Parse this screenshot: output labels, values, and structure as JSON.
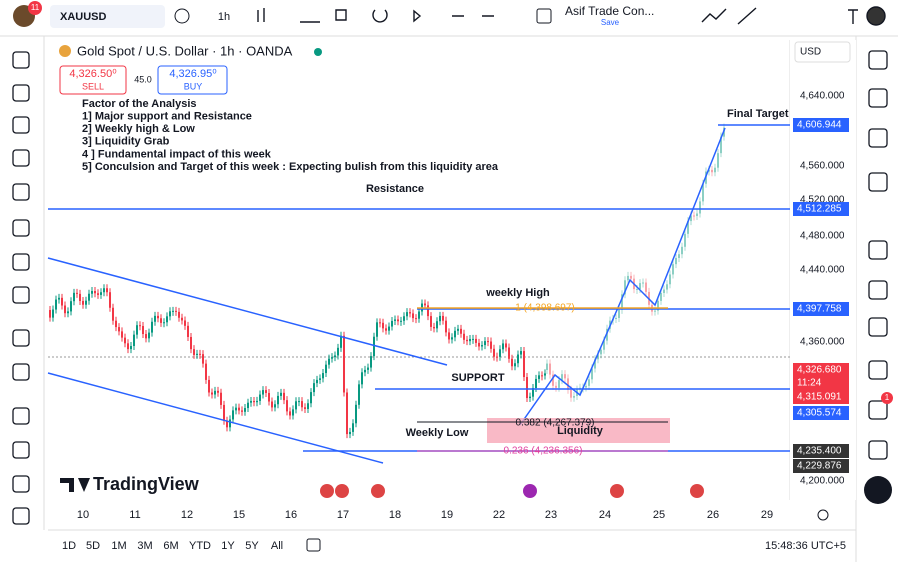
{
  "topbar": {
    "badge": "11",
    "symbol": "XAUUSD",
    "interval": "1h",
    "layout_name": "Asif Trade Con...",
    "layout_save": "Save"
  },
  "legend": {
    "title": "Gold Spot / U.S. Dollar · 1h · OANDA",
    "sell_price": "4,326.50⁰",
    "sell": "SELL",
    "spread": "45.0",
    "buy_price": "4,326.95⁰",
    "buy": "BUY",
    "currency": "USD"
  },
  "notes": [
    "Factor of the Analysis",
    "1] Major support and Resistance",
    "2] Weekly high & Low",
    "3] Liquidity Grab",
    "4 ] Fundamental impact of this week",
    "5] Conculsion and Target of this week : Expecting bulish from this liquidity area"
  ],
  "annotations": {
    "resistance": "Resistance",
    "weekly_high": "weekly High",
    "fib_1": "1 (4,398.697)",
    "support": "SUPPORT",
    "fib_0382": "0.382 (4,267.379)",
    "liquidity": "Liquidity",
    "weekly_low": "Weekly  Low",
    "fib_0236": "0.236 (4,236.356)",
    "final_target": "Final Target"
  },
  "price_axis": [
    "4,640.000",
    "4,560.000",
    "4,520.000",
    "4,480.000",
    "4,440.000",
    "4,360.000",
    "4,200.000"
  ],
  "price_tags": {
    "target": "4,606.944",
    "resistance": "4,512.285",
    "weekly_high": "4,397.758",
    "last": "4,326.680",
    "countdown": "11:24",
    "bid": "4,315.091",
    "support": "4,305.574",
    "weekly_low": "4,235.400",
    "low2": "4,229.876"
  },
  "time_axis": [
    "10",
    "11",
    "12",
    "15",
    "16",
    "17",
    "18",
    "19",
    "22",
    "23",
    "24",
    "25",
    "26",
    "29"
  ],
  "brand": "TradingView",
  "bottombar": {
    "ranges": [
      "1D",
      "5D",
      "1M",
      "3M",
      "6M",
      "YTD",
      "1Y",
      "5Y",
      "All"
    ],
    "clock": "15:48:36 UTC+5"
  },
  "notification_badge": "1"
}
